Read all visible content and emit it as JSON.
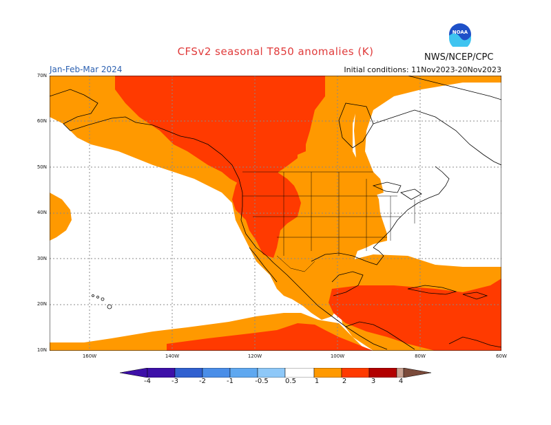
{
  "header": {
    "title": "CFSv2 seasonal T850 anomalies (K)",
    "agency": "NWS/NCEP/CPC",
    "logo_text": "NOAA",
    "period": "Jan-Feb-Mar 2024",
    "initial_conditions": "Initial conditions: 11Nov2023-20Nov2023"
  },
  "map": {
    "lat_labels": [
      "70N",
      "60N",
      "50N",
      "40N",
      "30N",
      "20N",
      "10N"
    ],
    "lon_labels": [
      "160W",
      "140W",
      "120W",
      "100W",
      "80W",
      "60W"
    ]
  },
  "legend": {
    "labels": [
      "-4",
      "-3",
      "-2",
      "-1",
      "-0.5",
      "0.5",
      "1",
      "2",
      "3",
      "4"
    ],
    "colors": [
      "#3d10a8",
      "#3060d0",
      "#4a8ee8",
      "#5fa8f0",
      "#8ec8f8",
      "#ffffff",
      "#ff9900",
      "#ff3a00",
      "#b20000",
      "#c8a090",
      "#7a4a3a"
    ]
  }
}
